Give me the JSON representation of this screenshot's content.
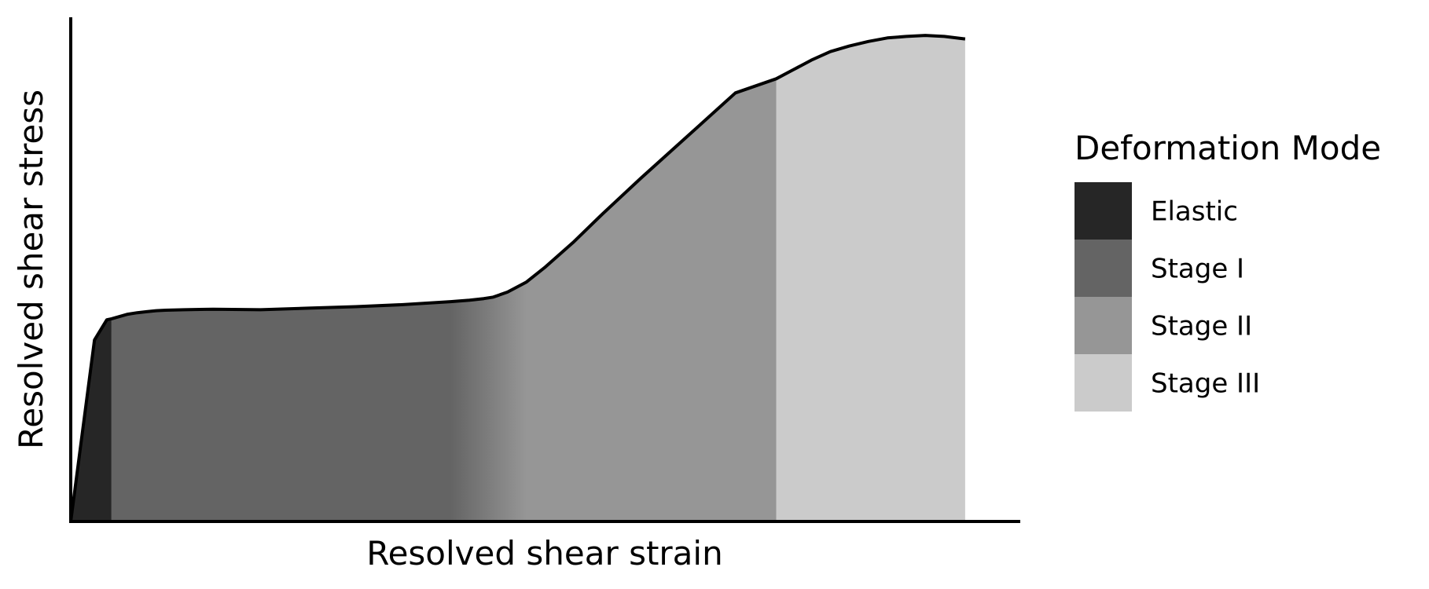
{
  "chart_data": {
    "type": "area",
    "title": "",
    "xlabel": "Resolved shear strain",
    "ylabel": "Resolved shear stress",
    "xlim": [
      0,
      100
    ],
    "ylim": [
      0,
      100
    ],
    "axis_ticks": false,
    "grid": false,
    "legend": {
      "title": "Deformation Mode",
      "position": "right"
    },
    "colors": {
      "Elastic": "#262626",
      "Stage I": "#646464",
      "Stage II": "#969696",
      "Stage III": "#cbcbcb",
      "outline": "#000000"
    },
    "series": [
      {
        "name": "Elastic",
        "x": [
          0,
          2.5,
          3.8,
          4.3
        ],
        "y": [
          0,
          36,
          40,
          40.2
        ]
      },
      {
        "name": "Stage I",
        "x": [
          4.3,
          6,
          7,
          8,
          9,
          10,
          12,
          15,
          20,
          25,
          30,
          35,
          40,
          42,
          43.5,
          44.5
        ],
        "y": [
          40.2,
          41.1,
          41.4,
          41.6,
          41.8,
          41.9,
          42,
          42.1,
          42.0,
          42.3,
          42.6,
          43.0,
          43.6,
          43.9,
          44.2,
          44.5
        ]
      },
      {
        "name": "Stage II",
        "x": [
          44.5,
          46,
          48,
          50,
          53,
          56,
          60,
          65,
          70,
          74.3
        ],
        "y": [
          44.5,
          45.5,
          47.5,
          50.5,
          55.5,
          61,
          68,
          76.5,
          85,
          87.8
        ]
      },
      {
        "name": "Stage III",
        "x": [
          74.3,
          76,
          78,
          80,
          82,
          84,
          86,
          88,
          90,
          92,
          94.2
        ],
        "y": [
          87.8,
          89.5,
          91.5,
          93.2,
          94.3,
          95.2,
          95.9,
          96.2,
          96.4,
          96.2,
          95.7
        ]
      }
    ]
  }
}
